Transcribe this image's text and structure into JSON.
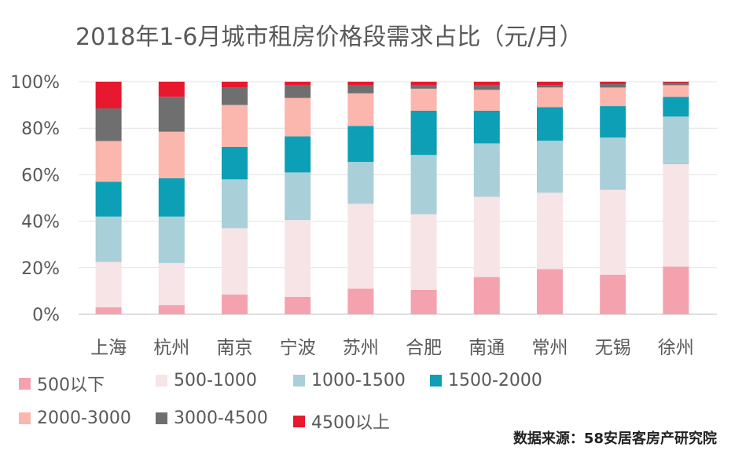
{
  "chart_data": {
    "type": "bar",
    "stacked": true,
    "title": "2018年1-6月城市租房价格段需求占比（元/月）",
    "categories": [
      "上海",
      "杭州",
      "南京",
      "宁波",
      "苏州",
      "合肥",
      "南通",
      "常州",
      "无锡",
      "徐州"
    ],
    "series": [
      {
        "name": "500以下",
        "color": "#f4a3ae",
        "values": [
          3,
          4,
          8.5,
          7.5,
          11,
          10.5,
          16,
          19.5,
          17,
          20.5
        ]
      },
      {
        "name": "500-1000",
        "color": "#f7e4e6",
        "values": [
          19.5,
          18,
          28.5,
          33,
          36.5,
          32.5,
          34.5,
          33,
          36.5,
          44
        ]
      },
      {
        "name": "1000-1500",
        "color": "#a9cfd8",
        "values": [
          19.5,
          20,
          21,
          20.5,
          18,
          25.5,
          23,
          22.5,
          22.5,
          20.5
        ]
      },
      {
        "name": "1500-2000",
        "color": "#0d9fb5",
        "values": [
          15,
          16.5,
          14,
          15.5,
          15.5,
          19,
          14,
          14.5,
          13.5,
          8.5
        ]
      },
      {
        "name": "2000-3000",
        "color": "#fbb6ae",
        "values": [
          17.5,
          20,
          18,
          16.5,
          14,
          9.5,
          9,
          8.5,
          8,
          5
        ]
      },
      {
        "name": "3000-4500",
        "color": "#6f6f6f",
        "values": [
          14,
          15,
          7.5,
          5.5,
          3.5,
          1.5,
          2,
          1,
          1.5,
          1
        ]
      },
      {
        "name": "4500以上",
        "color": "#e8192e",
        "values": [
          11.5,
          6.5,
          2.5,
          1.5,
          1.5,
          1.5,
          1.5,
          1.5,
          1,
          0.5
        ]
      }
    ],
    "y_axis": {
      "ticks": [
        "0%",
        "20%",
        "40%",
        "60%",
        "80%",
        "100%"
      ],
      "range": [
        0,
        100
      ]
    },
    "grid": true,
    "legend_position": "bottom"
  },
  "source_note": "数据来源：58安居客房产研究院"
}
